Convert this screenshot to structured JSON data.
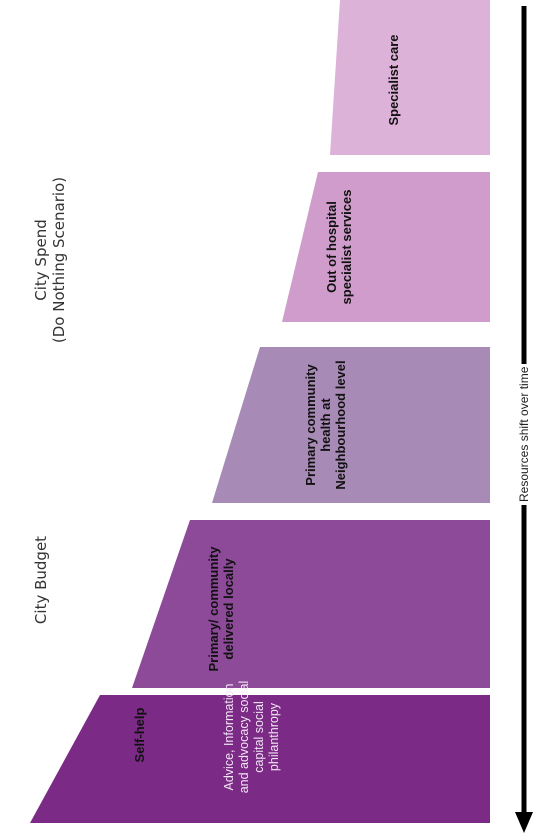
{
  "headings": {
    "city_budget": "City Budget",
    "city_spend_line1": "City Spend",
    "city_spend_line2": "(Do Nothing Scenario)"
  },
  "blocks": [
    {
      "label": "Self-help",
      "sublabel": "Advice, Information and advocacy social capital social philanthropy",
      "color": "#7b2a86"
    },
    {
      "label": "Primary/ community delivered locally",
      "color": "#8c4a98"
    },
    {
      "label": "Primary community health at Neighbourhood level",
      "color": "#a88ab6"
    },
    {
      "label": "Out of hospital specialist services",
      "color": "#cf9ccb"
    },
    {
      "label": "Specialist care",
      "color": "#ddb2d8"
    }
  ],
  "arrow": {
    "label": "Resources shift over time",
    "color": "#000000"
  }
}
